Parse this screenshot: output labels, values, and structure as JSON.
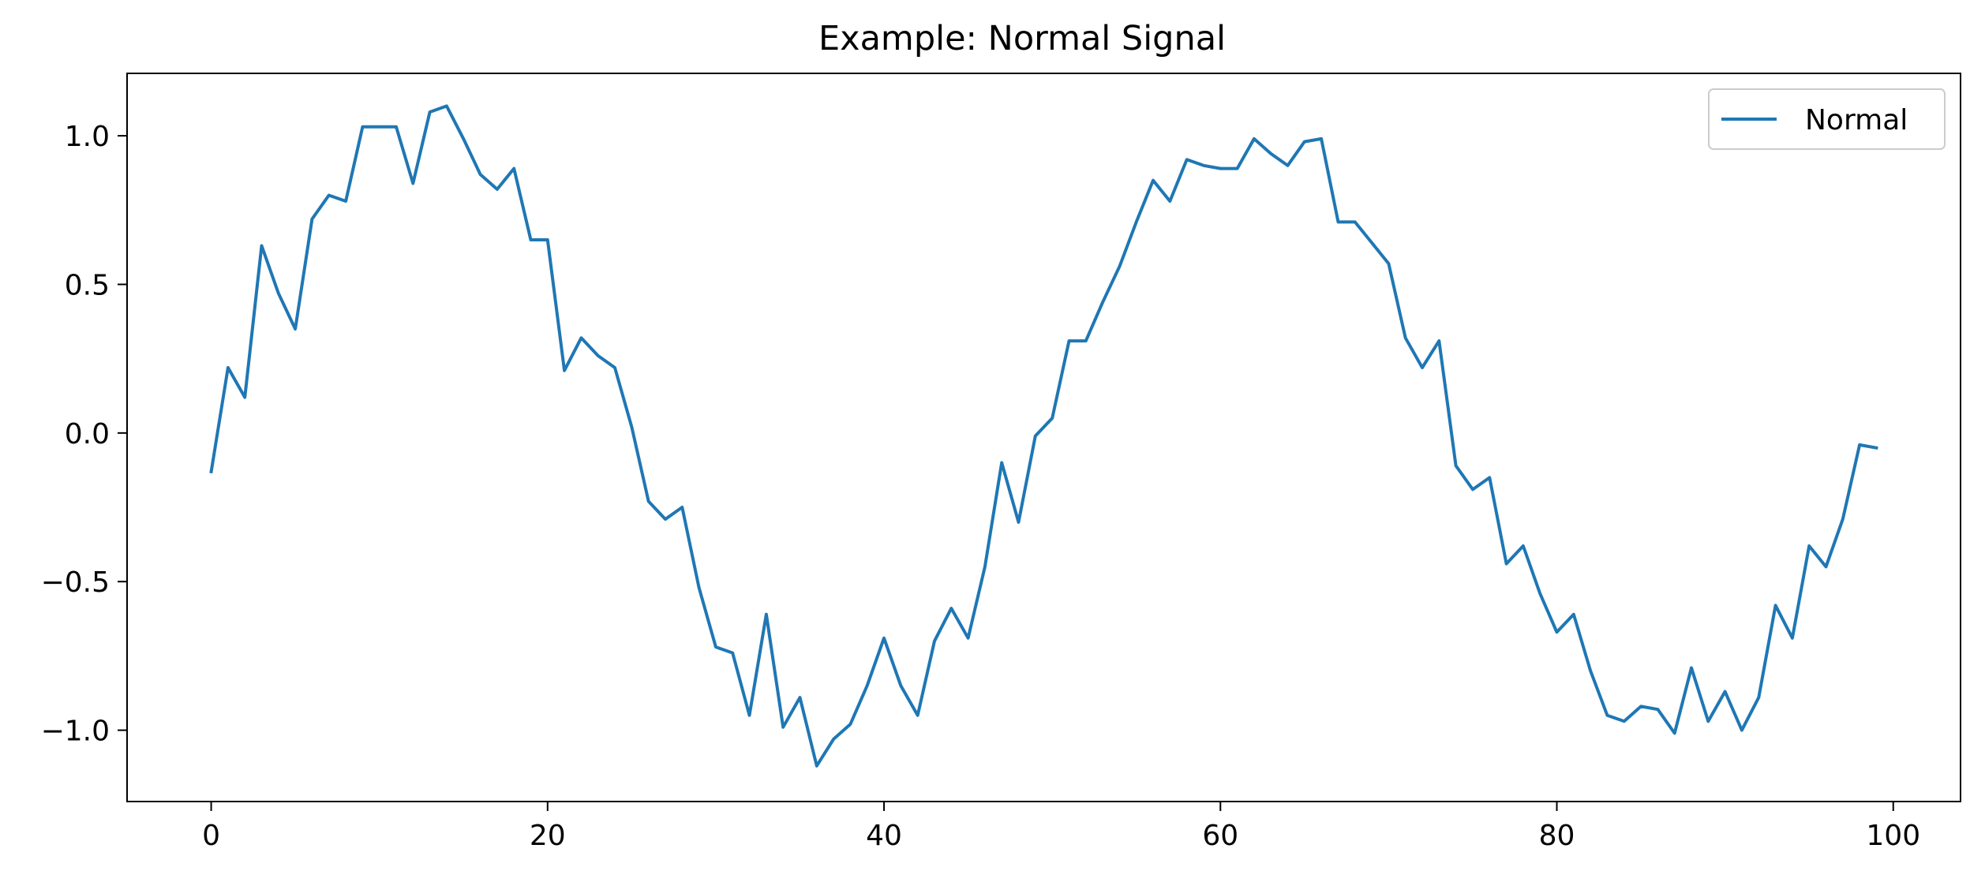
{
  "chart_data": {
    "type": "line",
    "title": "Example: Normal Signal",
    "xlabel": "",
    "ylabel": "",
    "xlim": [
      -5,
      104
    ],
    "ylim": [
      -1.24,
      1.21
    ],
    "xticks": [
      0,
      20,
      40,
      60,
      80,
      100
    ],
    "xtick_labels": [
      "0",
      "20",
      "40",
      "60",
      "80",
      "100"
    ],
    "yticks": [
      -1.0,
      -0.5,
      0.0,
      0.5,
      1.0
    ],
    "ytick_labels": [
      "−1.0",
      "−0.5",
      "0.0",
      "0.5",
      "1.0"
    ],
    "grid": false,
    "legend_position": "top-right",
    "series": [
      {
        "name": "Normal",
        "color": "#1f77b4",
        "x": [
          0,
          1,
          2,
          3,
          4,
          5,
          6,
          7,
          8,
          9,
          10,
          11,
          12,
          13,
          14,
          15,
          16,
          17,
          18,
          19,
          20,
          21,
          22,
          23,
          24,
          25,
          26,
          27,
          28,
          29,
          30,
          31,
          32,
          33,
          34,
          35,
          36,
          37,
          38,
          39,
          40,
          41,
          42,
          43,
          44,
          45,
          46,
          47,
          48,
          49,
          50,
          51,
          52,
          53,
          54,
          55,
          56,
          57,
          58,
          59,
          60,
          61,
          62,
          63,
          64,
          65,
          66,
          67,
          68,
          69,
          70,
          71,
          72,
          73,
          74,
          75,
          76,
          77,
          78,
          79,
          80,
          81,
          82,
          83,
          84,
          85,
          86,
          87,
          88,
          89,
          90,
          91,
          92,
          93,
          94,
          95,
          96,
          97,
          98,
          99
        ],
        "y": [
          -0.13,
          0.22,
          0.12,
          0.63,
          0.47,
          0.35,
          0.72,
          0.8,
          0.78,
          1.03,
          1.03,
          1.03,
          0.84,
          1.08,
          1.1,
          0.99,
          0.87,
          0.82,
          0.89,
          0.65,
          0.65,
          0.21,
          0.32,
          0.26,
          0.22,
          0.02,
          -0.23,
          -0.29,
          -0.25,
          -0.52,
          -0.72,
          -0.74,
          -0.95,
          -0.61,
          -0.99,
          -0.89,
          -1.12,
          -1.03,
          -0.98,
          -0.85,
          -0.69,
          -0.85,
          -0.95,
          -0.7,
          -0.59,
          -0.69,
          -0.45,
          -0.1,
          -0.3,
          -0.01,
          0.05,
          0.31,
          0.31,
          0.44,
          0.56,
          0.71,
          0.85,
          0.78,
          0.92,
          0.9,
          0.89,
          0.89,
          0.99,
          0.94,
          0.9,
          0.98,
          0.99,
          0.71,
          0.71,
          0.64,
          0.57,
          0.32,
          0.22,
          0.31,
          -0.11,
          -0.19,
          -0.15,
          -0.44,
          -0.38,
          -0.54,
          -0.67,
          -0.61,
          -0.8,
          -0.95,
          -0.97,
          -0.92,
          -0.93,
          -1.01,
          -0.79,
          -0.97,
          -0.87,
          -1.0,
          -0.89,
          -0.58,
          -0.69,
          -0.38,
          -0.45,
          -0.29,
          -0.04,
          -0.05
        ]
      }
    ]
  }
}
